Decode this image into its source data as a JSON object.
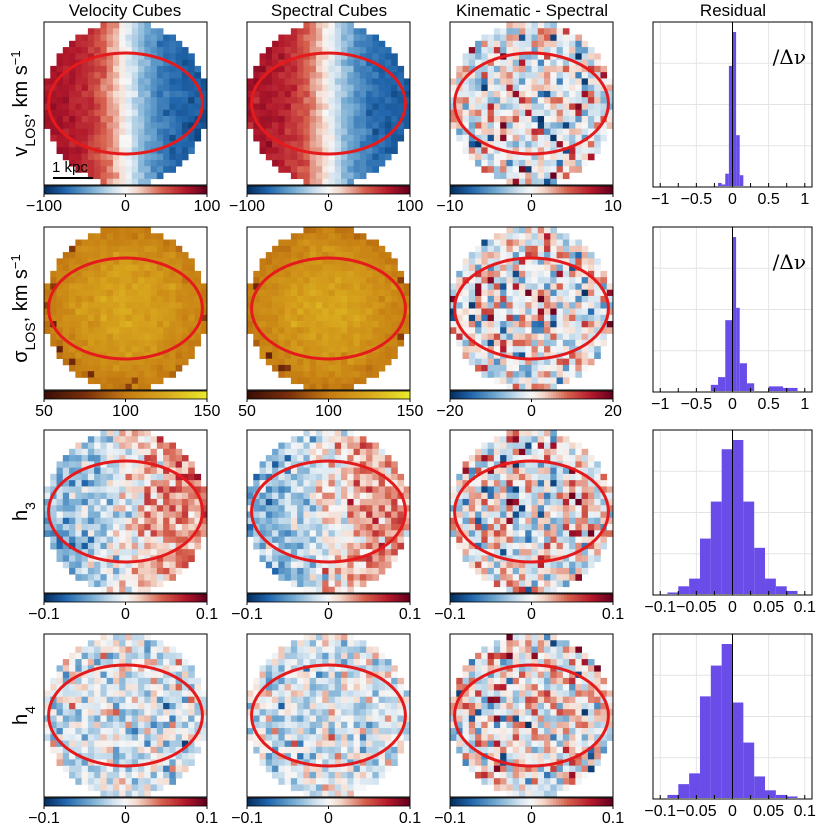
{
  "chart_data": {
    "type": "heatmap",
    "column_titles": [
      "Velocity Cubes",
      "Spectral Cubes",
      "Kinematic - Spectral",
      "Residual"
    ],
    "scale_bar_label": "1 kpc",
    "rows": [
      {
        "key": "vlos",
        "label_main": "v",
        "label_sub": "LOS",
        "label_unit": ", km s",
        "label_sup": "−1",
        "maps": [
          {
            "panel": "velocity",
            "colormap": "diverging",
            "pattern": "rotation",
            "clim": [
              -100,
              100
            ],
            "ticks": [
              "−100",
              "0",
              "100"
            ]
          },
          {
            "panel": "spectral",
            "colormap": "diverging",
            "pattern": "rotation",
            "clim": [
              -100,
              100
            ],
            "ticks": [
              "−100",
              "0",
              "100"
            ]
          },
          {
            "panel": "difference",
            "colormap": "diverging",
            "pattern": "noise",
            "clim": [
              -10,
              10
            ],
            "ticks": [
              "−10",
              "0",
              "10"
            ]
          }
        ],
        "histogram": {
          "annotation": "/Δν",
          "xlim": [
            -1.1,
            1.1
          ],
          "ticks": [
            -1,
            -0.5,
            0,
            0.5,
            1
          ],
          "tick_labels": [
            "−1",
            "−0.5",
            "0",
            "0.5",
            "1"
          ],
          "bins": [
            [
              -0.15,
              -0.1,
              0.01
            ],
            [
              -0.1,
              -0.05,
              0.08
            ],
            [
              -0.05,
              0.0,
              0.78
            ],
            [
              0.0,
              0.05,
              1.0
            ],
            [
              0.05,
              0.1,
              0.33
            ],
            [
              0.1,
              0.15,
              0.07
            ],
            [
              -0.2,
              -0.15,
              0.02
            ]
          ]
        }
      },
      {
        "key": "sigma",
        "label_main": "σ",
        "label_sub": "LOS",
        "label_unit": ", km s",
        "label_sup": "−1",
        "maps": [
          {
            "panel": "velocity",
            "colormap": "heat",
            "pattern": "dispersion",
            "clim": [
              50,
              150
            ],
            "ticks": [
              "50",
              "100",
              "150"
            ]
          },
          {
            "panel": "spectral",
            "colormap": "heat",
            "pattern": "dispersion",
            "clim": [
              50,
              150
            ],
            "ticks": [
              "50",
              "100",
              "150"
            ]
          },
          {
            "panel": "difference",
            "colormap": "diverging",
            "pattern": "noise",
            "clim": [
              -20,
              20
            ],
            "ticks": [
              "−20",
              "0",
              "20"
            ]
          }
        ],
        "histogram": {
          "annotation": "/Δν",
          "xlim": [
            -1.1,
            1.1
          ],
          "ticks": [
            -1,
            -0.5,
            0,
            0.5,
            1
          ],
          "tick_labels": [
            "−1",
            "−0.5",
            "0",
            "0.5",
            "1"
          ],
          "bins": [
            [
              -0.3,
              -0.2,
              0.04
            ],
            [
              -0.2,
              -0.1,
              0.09
            ],
            [
              -0.1,
              0.0,
              0.46
            ],
            [
              0.0,
              0.05,
              1.0
            ],
            [
              0.05,
              0.1,
              0.54
            ],
            [
              0.1,
              0.2,
              0.18
            ],
            [
              0.2,
              0.3,
              0.05
            ],
            [
              0.5,
              0.7,
              0.03
            ],
            [
              0.7,
              0.9,
              0.02
            ]
          ]
        }
      },
      {
        "key": "h3",
        "label_main": "h",
        "label_sub": "3",
        "label_unit": "",
        "label_sup": "",
        "maps": [
          {
            "panel": "velocity",
            "colormap": "diverging",
            "pattern": "h3",
            "clim": [
              -0.1,
              0.1
            ],
            "ticks": [
              "−0.1",
              "0",
              "0.1"
            ]
          },
          {
            "panel": "spectral",
            "colormap": "diverging",
            "pattern": "h3",
            "clim": [
              -0.1,
              0.1
            ],
            "ticks": [
              "−0.1",
              "0",
              "0.1"
            ]
          },
          {
            "panel": "difference",
            "colormap": "diverging",
            "pattern": "noise",
            "clim": [
              -0.1,
              0.1
            ],
            "ticks": [
              "−0.1",
              "0",
              "0.1"
            ]
          }
        ],
        "histogram": {
          "annotation": "",
          "xlim": [
            -0.11,
            0.11
          ],
          "ticks": [
            -0.1,
            -0.05,
            0,
            0.05,
            0.1
          ],
          "tick_labels": [
            "−0.1",
            "−0.05",
            "0",
            "0.05",
            "0.1"
          ],
          "bins": [
            [
              -0.09,
              -0.075,
              0.01
            ],
            [
              -0.075,
              -0.06,
              0.05
            ],
            [
              -0.06,
              -0.045,
              0.1
            ],
            [
              -0.045,
              -0.03,
              0.36
            ],
            [
              -0.03,
              -0.015,
              0.6
            ],
            [
              -0.015,
              0.0,
              0.94
            ],
            [
              0.0,
              0.015,
              1.0
            ],
            [
              0.015,
              0.03,
              0.6
            ],
            [
              0.03,
              0.045,
              0.3
            ],
            [
              0.045,
              0.06,
              0.1
            ],
            [
              0.06,
              0.075,
              0.05
            ],
            [
              0.075,
              0.09,
              0.02
            ]
          ]
        }
      },
      {
        "key": "h4",
        "label_main": "h",
        "label_sub": "4",
        "label_unit": "",
        "label_sup": "",
        "maps": [
          {
            "panel": "velocity",
            "colormap": "diverging",
            "pattern": "h4",
            "clim": [
              -0.1,
              0.1
            ],
            "ticks": [
              "−0.1",
              "0",
              "0.1"
            ]
          },
          {
            "panel": "spectral",
            "colormap": "diverging",
            "pattern": "h4",
            "clim": [
              -0.1,
              0.1
            ],
            "ticks": [
              "−0.1",
              "0",
              "0.1"
            ]
          },
          {
            "panel": "difference",
            "colormap": "diverging",
            "pattern": "noise",
            "clim": [
              -0.1,
              0.1
            ],
            "ticks": [
              "−0.1",
              "0",
              "0.1"
            ]
          }
        ],
        "histogram": {
          "annotation": "",
          "xlim": [
            -0.11,
            0.11
          ],
          "ticks": [
            -0.1,
            -0.05,
            0,
            0.05,
            0.1
          ],
          "tick_labels": [
            "−0.1",
            "−0.05",
            "0",
            "0.05",
            "0.1"
          ],
          "bins": [
            [
              -0.09,
              -0.075,
              0.02
            ],
            [
              -0.075,
              -0.06,
              0.09
            ],
            [
              -0.06,
              -0.045,
              0.16
            ],
            [
              -0.045,
              -0.03,
              0.66
            ],
            [
              -0.03,
              -0.015,
              0.86
            ],
            [
              -0.015,
              0.0,
              1.0
            ],
            [
              0.0,
              0.015,
              0.62
            ],
            [
              0.015,
              0.03,
              0.36
            ],
            [
              0.03,
              0.045,
              0.14
            ],
            [
              0.045,
              0.06,
              0.05
            ],
            [
              0.06,
              0.075,
              0.02
            ],
            [
              0.075,
              0.09,
              0.01
            ]
          ]
        }
      }
    ]
  },
  "colors": {
    "ellipse": "#e41a1c",
    "histogram_bar": "#6a4de8",
    "grid": "#e4e4e4",
    "diverging_low": "#2166ac",
    "diverging_mid": "#f7f7f7",
    "diverging_high": "#67001f",
    "heat_low": "#3b0f06",
    "heat_mid": "#c47a12",
    "heat_high": "#e8e82a"
  }
}
